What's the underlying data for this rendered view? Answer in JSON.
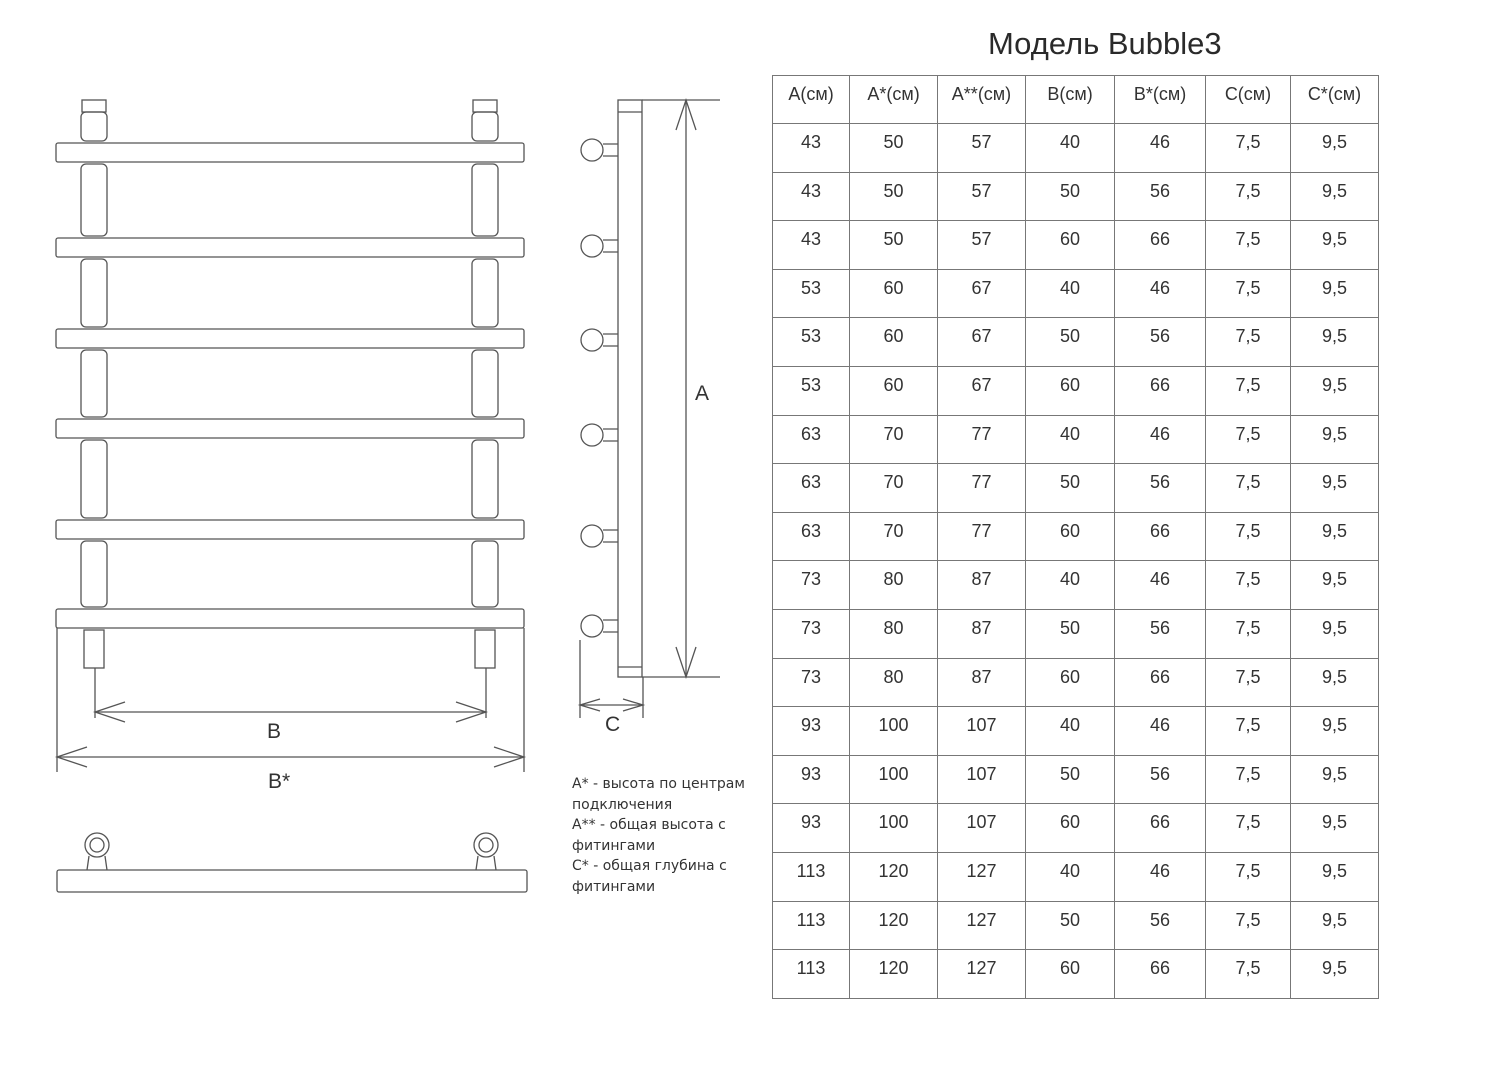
{
  "title": "Модель Bubble3",
  "dimension_labels": {
    "a": "A",
    "b": "B",
    "b_star": "B*",
    "c": "C"
  },
  "legend": [
    "A* - высота по центрам подключения",
    "A** - общая высота с фитингами",
    "C* - общая глубина с фитингами"
  ],
  "table": {
    "headers": [
      "A(см)",
      "A*(см)",
      "A**(см)",
      "B(см)",
      "B*(см)",
      "C(см)",
      "C*(см)"
    ],
    "rows": [
      [
        "43",
        "50",
        "57",
        "40",
        "46",
        "7,5",
        "9,5"
      ],
      [
        "43",
        "50",
        "57",
        "50",
        "56",
        "7,5",
        "9,5"
      ],
      [
        "43",
        "50",
        "57",
        "60",
        "66",
        "7,5",
        "9,5"
      ],
      [
        "53",
        "60",
        "67",
        "40",
        "46",
        "7,5",
        "9,5"
      ],
      [
        "53",
        "60",
        "67",
        "50",
        "56",
        "7,5",
        "9,5"
      ],
      [
        "53",
        "60",
        "67",
        "60",
        "66",
        "7,5",
        "9,5"
      ],
      [
        "63",
        "70",
        "77",
        "40",
        "46",
        "7,5",
        "9,5"
      ],
      [
        "63",
        "70",
        "77",
        "50",
        "56",
        "7,5",
        "9,5"
      ],
      [
        "63",
        "70",
        "77",
        "60",
        "66",
        "7,5",
        "9,5"
      ],
      [
        "73",
        "80",
        "87",
        "40",
        "46",
        "7,5",
        "9,5"
      ],
      [
        "73",
        "80",
        "87",
        "50",
        "56",
        "7,5",
        "9,5"
      ],
      [
        "73",
        "80",
        "87",
        "60",
        "66",
        "7,5",
        "9,5"
      ],
      [
        "93",
        "100",
        "107",
        "40",
        "46",
        "7,5",
        "9,5"
      ],
      [
        "93",
        "100",
        "107",
        "50",
        "56",
        "7,5",
        "9,5"
      ],
      [
        "93",
        "100",
        "107",
        "60",
        "66",
        "7,5",
        "9,5"
      ],
      [
        "113",
        "120",
        "127",
        "40",
        "46",
        "7,5",
        "9,5"
      ],
      [
        "113",
        "120",
        "127",
        "50",
        "56",
        "7,5",
        "9,5"
      ],
      [
        "113",
        "120",
        "127",
        "60",
        "66",
        "7,5",
        "9,5"
      ]
    ]
  }
}
